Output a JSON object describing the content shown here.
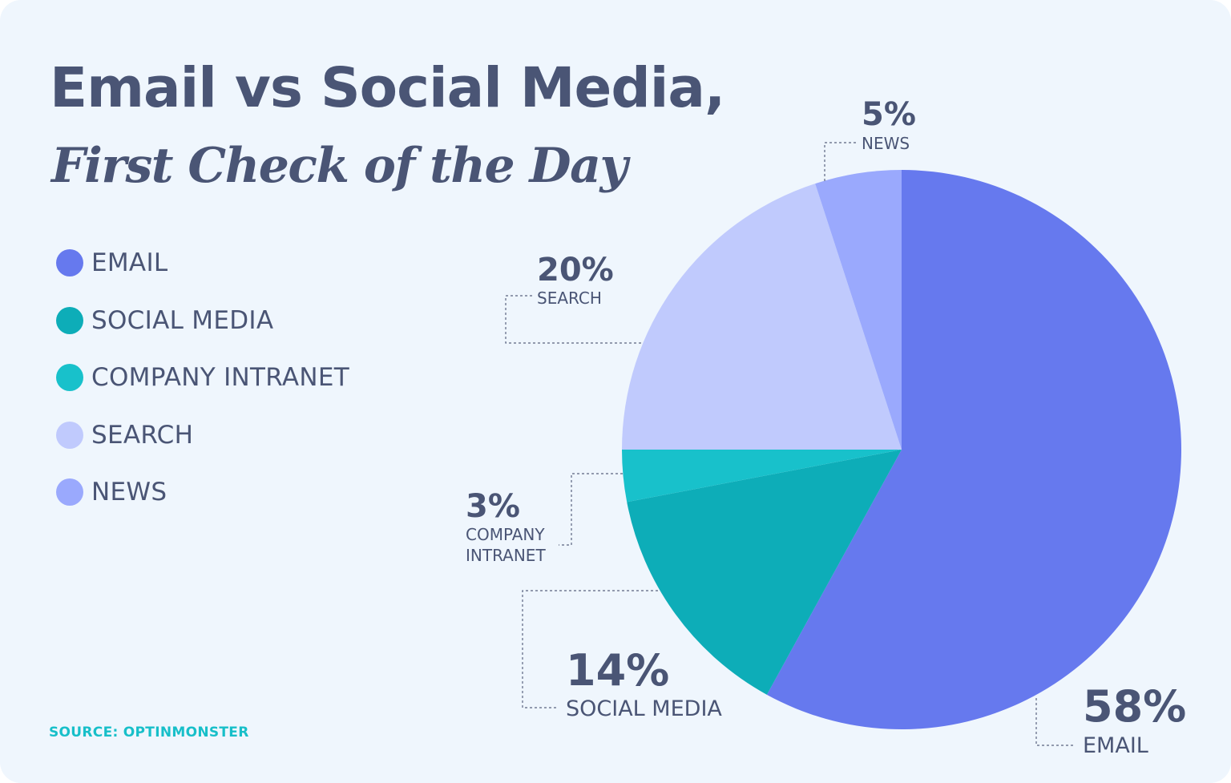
{
  "title": "Email vs Social Media,",
  "subtitle": "First Check of the Day",
  "source": "SOURCE: OPTINMONSTER",
  "colors": {
    "background": "#eff6fd",
    "text": "#4a5575",
    "source": "#17bfc9"
  },
  "legend": [
    {
      "label": "EMAIL",
      "color": "#6679ee"
    },
    {
      "label": "SOCIAL MEDIA",
      "color": "#0dadb8"
    },
    {
      "label": "COMPANY INTRANET",
      "color": "#18c1cb"
    },
    {
      "label": "SEARCH",
      "color": "#c0cafd"
    },
    {
      "label": "NEWS",
      "color": "#9aa9fd"
    }
  ],
  "chart_data": {
    "type": "pie",
    "start_angle_deg": 0,
    "direction": "clockwise",
    "slices": [
      {
        "label": "EMAIL",
        "value": 58,
        "value_label": "58%",
        "label_lines": [
          "EMAIL"
        ],
        "color": "#6679ee"
      },
      {
        "label": "SOCIAL MEDIA",
        "value": 14,
        "value_label": "14%",
        "label_lines": [
          "SOCIAL MEDIA"
        ],
        "color": "#0dadb8"
      },
      {
        "label": "COMPANY INTRANET",
        "value": 3,
        "value_label": "3%",
        "label_lines": [
          "COMPANY",
          "INTRANET"
        ],
        "color": "#18c1cb"
      },
      {
        "label": "SEARCH",
        "value": 20,
        "value_label": "20%",
        "label_lines": [
          "SEARCH"
        ],
        "color": "#c0cafd"
      },
      {
        "label": "NEWS",
        "value": 5,
        "value_label": "5%",
        "label_lines": [
          "NEWS"
        ],
        "color": "#9aa9fd"
      }
    ],
    "legend_position": "left"
  }
}
